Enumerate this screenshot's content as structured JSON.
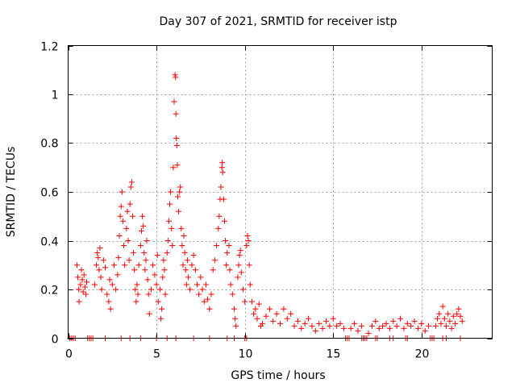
{
  "chart_data": {
    "type": "scatter",
    "title": "Day 307 of 2021, SRMTID for receiver istp",
    "xlabel": "GPS time / hours",
    "ylabel": "SRMTID / TECUs",
    "xlim": [
      0,
      24
    ],
    "ylim": [
      0,
      1.2
    ],
    "xticks": [
      0,
      5,
      10,
      15,
      20
    ],
    "xtick_labels": [
      "0",
      "5",
      "10",
      "15",
      "20"
    ],
    "yticks": [
      0,
      0.2,
      0.4,
      0.6,
      0.8,
      1.0,
      1.2
    ],
    "ytick_labels": [
      "0",
      "0.2",
      "0.4",
      "0.6",
      "0.8",
      "1",
      "1.2"
    ],
    "grid": true,
    "marker": "+",
    "color": "#ff0000",
    "series": [
      {
        "name": "SRMTID",
        "points": [
          [
            0.1,
            0.0
          ],
          [
            0.2,
            0.0
          ],
          [
            0.3,
            0.0
          ],
          [
            0.4,
            0.0
          ],
          [
            1.1,
            0.0
          ],
          [
            1.2,
            0.0
          ],
          [
            1.3,
            0.0
          ],
          [
            1.4,
            0.0
          ],
          [
            2.1,
            0.0
          ],
          [
            3.0,
            0.0
          ],
          [
            3.5,
            0.0
          ],
          [
            4.1,
            0.0
          ],
          [
            5.0,
            0.0
          ],
          [
            5.6,
            0.0
          ],
          [
            6.1,
            0.0
          ],
          [
            7.1,
            0.0
          ],
          [
            8.0,
            0.0
          ],
          [
            9.0,
            0.0
          ],
          [
            9.4,
            0.0
          ],
          [
            10.0,
            0.0
          ],
          [
            10.1,
            0.0
          ],
          [
            15.7,
            0.0
          ],
          [
            15.8,
            0.0
          ],
          [
            15.9,
            0.0
          ],
          [
            16.6,
            0.0
          ],
          [
            16.7,
            0.0
          ],
          [
            16.8,
            0.0
          ],
          [
            16.9,
            0.0
          ],
          [
            17.4,
            0.0
          ],
          [
            17.5,
            0.0
          ],
          [
            18.2,
            0.0
          ],
          [
            18.4,
            0.0
          ],
          [
            19.1,
            0.0
          ],
          [
            19.2,
            0.0
          ],
          [
            20.5,
            0.0
          ],
          [
            20.6,
            0.0
          ],
          [
            20.7,
            0.0
          ],
          [
            21.2,
            0.0
          ],
          [
            21.4,
            0.0
          ],
          [
            22.2,
            0.0
          ],
          [
            0.5,
            0.3
          ],
          [
            0.55,
            0.25
          ],
          [
            0.6,
            0.2
          ],
          [
            0.62,
            0.15
          ],
          [
            0.7,
            0.22
          ],
          [
            0.75,
            0.28
          ],
          [
            0.8,
            0.24
          ],
          [
            0.85,
            0.19
          ],
          [
            0.9,
            0.26
          ],
          [
            0.95,
            0.21
          ],
          [
            1.0,
            0.18
          ],
          [
            1.05,
            0.23
          ],
          [
            1.5,
            0.22
          ],
          [
            1.6,
            0.3
          ],
          [
            1.65,
            0.35
          ],
          [
            1.7,
            0.33
          ],
          [
            1.75,
            0.28
          ],
          [
            1.8,
            0.37
          ],
          [
            1.85,
            0.25
          ],
          [
            1.9,
            0.2
          ],
          [
            2.0,
            0.32
          ],
          [
            2.1,
            0.29
          ],
          [
            2.2,
            0.18
          ],
          [
            2.3,
            0.15
          ],
          [
            2.35,
            0.24
          ],
          [
            2.4,
            0.12
          ],
          [
            2.5,
            0.22
          ],
          [
            2.6,
            0.3
          ],
          [
            2.7,
            0.2
          ],
          [
            2.8,
            0.26
          ],
          [
            2.85,
            0.33
          ],
          [
            2.9,
            0.42
          ],
          [
            2.95,
            0.5
          ],
          [
            3.0,
            0.54
          ],
          [
            3.05,
            0.6
          ],
          [
            3.1,
            0.48
          ],
          [
            3.15,
            0.38
          ],
          [
            3.2,
            0.3
          ],
          [
            3.3,
            0.45
          ],
          [
            3.35,
            0.52
          ],
          [
            3.4,
            0.4
          ],
          [
            3.45,
            0.32
          ],
          [
            3.5,
            0.55
          ],
          [
            3.55,
            0.62
          ],
          [
            3.6,
            0.64
          ],
          [
            3.65,
            0.5
          ],
          [
            3.7,
            0.35
          ],
          [
            3.75,
            0.28
          ],
          [
            3.8,
            0.2
          ],
          [
            3.85,
            0.15
          ],
          [
            3.9,
            0.22
          ],
          [
            3.95,
            0.18
          ],
          [
            4.0,
            0.3
          ],
          [
            4.1,
            0.38
          ],
          [
            4.15,
            0.44
          ],
          [
            4.2,
            0.5
          ],
          [
            4.25,
            0.46
          ],
          [
            4.3,
            0.35
          ],
          [
            4.35,
            0.28
          ],
          [
            4.4,
            0.32
          ],
          [
            4.45,
            0.4
          ],
          [
            4.5,
            0.24
          ],
          [
            4.55,
            0.18
          ],
          [
            4.6,
            0.1
          ],
          [
            4.7,
            0.2
          ],
          [
            4.8,
            0.3
          ],
          [
            4.9,
            0.26
          ],
          [
            5.0,
            0.22
          ],
          [
            5.05,
            0.34
          ],
          [
            5.1,
            0.15
          ],
          [
            5.2,
            0.2
          ],
          [
            5.25,
            0.08
          ],
          [
            5.3,
            0.12
          ],
          [
            5.35,
            0.25
          ],
          [
            5.4,
            0.32
          ],
          [
            5.45,
            0.28
          ],
          [
            5.5,
            0.18
          ],
          [
            5.6,
            0.35
          ],
          [
            5.65,
            0.4
          ],
          [
            5.7,
            0.48
          ],
          [
            5.75,
            0.55
          ],
          [
            5.8,
            0.6
          ],
          [
            5.85,
            0.45
          ],
          [
            5.9,
            0.38
          ],
          [
            5.95,
            0.7
          ],
          [
            6.0,
            0.97
          ],
          [
            6.05,
            1.08
          ],
          [
            6.08,
            1.07
          ],
          [
            6.1,
            0.92
          ],
          [
            6.12,
            0.82
          ],
          [
            6.15,
            0.79
          ],
          [
            6.18,
            0.71
          ],
          [
            6.2,
            0.58
          ],
          [
            6.25,
            0.52
          ],
          [
            6.3,
            0.6
          ],
          [
            6.35,
            0.62
          ],
          [
            6.4,
            0.45
          ],
          [
            6.45,
            0.38
          ],
          [
            6.5,
            0.3
          ],
          [
            6.55,
            0.42
          ],
          [
            6.6,
            0.35
          ],
          [
            6.65,
            0.28
          ],
          [
            6.7,
            0.22
          ],
          [
            6.75,
            0.32
          ],
          [
            6.8,
            0.25
          ],
          [
            6.9,
            0.2
          ],
          [
            7.0,
            0.3
          ],
          [
            7.1,
            0.34
          ],
          [
            7.2,
            0.28
          ],
          [
            7.3,
            0.22
          ],
          [
            7.4,
            0.18
          ],
          [
            7.5,
            0.25
          ],
          [
            7.6,
            0.2
          ],
          [
            7.7,
            0.15
          ],
          [
            7.8,
            0.22
          ],
          [
            7.9,
            0.16
          ],
          [
            8.0,
            0.12
          ],
          [
            8.1,
            0.18
          ],
          [
            8.2,
            0.28
          ],
          [
            8.3,
            0.32
          ],
          [
            8.4,
            0.38
          ],
          [
            8.5,
            0.45
          ],
          [
            8.55,
            0.5
          ],
          [
            8.6,
            0.57
          ],
          [
            8.65,
            0.62
          ],
          [
            8.7,
            0.7
          ],
          [
            8.72,
            0.72
          ],
          [
            8.75,
            0.68
          ],
          [
            8.8,
            0.57
          ],
          [
            8.85,
            0.48
          ],
          [
            8.9,
            0.4
          ],
          [
            8.95,
            0.3
          ],
          [
            9.0,
            0.35
          ],
          [
            9.1,
            0.38
          ],
          [
            9.15,
            0.28
          ],
          [
            9.2,
            0.22
          ],
          [
            9.3,
            0.18
          ],
          [
            9.4,
            0.12
          ],
          [
            9.45,
            0.08
          ],
          [
            9.5,
            0.05
          ],
          [
            9.6,
            0.25
          ],
          [
            9.65,
            0.3
          ],
          [
            9.7,
            0.34
          ],
          [
            9.75,
            0.36
          ],
          [
            9.8,
            0.27
          ],
          [
            9.9,
            0.2
          ],
          [
            10.0,
            0.15
          ],
          [
            10.1,
            0.38
          ],
          [
            10.15,
            0.42
          ],
          [
            10.2,
            0.4
          ],
          [
            10.25,
            0.3
          ],
          [
            10.3,
            0.22
          ],
          [
            10.4,
            0.15
          ],
          [
            10.5,
            0.1
          ],
          [
            10.6,
            0.12
          ],
          [
            10.7,
            0.08
          ],
          [
            10.8,
            0.14
          ],
          [
            10.9,
            0.05
          ],
          [
            11.0,
            0.06
          ],
          [
            11.2,
            0.09
          ],
          [
            11.4,
            0.12
          ],
          [
            11.6,
            0.07
          ],
          [
            11.8,
            0.1
          ],
          [
            12.0,
            0.06
          ],
          [
            12.2,
            0.12
          ],
          [
            12.4,
            0.08
          ],
          [
            12.6,
            0.1
          ],
          [
            12.8,
            0.05
          ],
          [
            13.0,
            0.07
          ],
          [
            13.2,
            0.04
          ],
          [
            13.4,
            0.06
          ],
          [
            13.6,
            0.08
          ],
          [
            13.8,
            0.05
          ],
          [
            14.0,
            0.03
          ],
          [
            14.2,
            0.06
          ],
          [
            14.4,
            0.04
          ],
          [
            14.6,
            0.07
          ],
          [
            14.8,
            0.05
          ],
          [
            15.0,
            0.08
          ],
          [
            15.2,
            0.05
          ],
          [
            15.4,
            0.06
          ],
          [
            15.6,
            0.04
          ],
          [
            16.0,
            0.04
          ],
          [
            16.2,
            0.06
          ],
          [
            16.4,
            0.03
          ],
          [
            16.6,
            0.05
          ],
          [
            17.0,
            0.02
          ],
          [
            17.2,
            0.05
          ],
          [
            17.4,
            0.07
          ],
          [
            17.6,
            0.04
          ],
          [
            17.8,
            0.05
          ],
          [
            18.0,
            0.06
          ],
          [
            18.2,
            0.04
          ],
          [
            18.4,
            0.07
          ],
          [
            18.6,
            0.05
          ],
          [
            18.8,
            0.08
          ],
          [
            19.0,
            0.04
          ],
          [
            19.2,
            0.06
          ],
          [
            19.4,
            0.05
          ],
          [
            19.6,
            0.07
          ],
          [
            19.8,
            0.04
          ],
          [
            20.0,
            0.06
          ],
          [
            20.2,
            0.03
          ],
          [
            20.4,
            0.05
          ],
          [
            20.8,
            0.05
          ],
          [
            20.9,
            0.08
          ],
          [
            21.0,
            0.1
          ],
          [
            21.1,
            0.06
          ],
          [
            21.2,
            0.13
          ],
          [
            21.3,
            0.08
          ],
          [
            21.4,
            0.05
          ],
          [
            21.5,
            0.1
          ],
          [
            21.6,
            0.07
          ],
          [
            21.7,
            0.04
          ],
          [
            21.8,
            0.09
          ],
          [
            21.9,
            0.06
          ],
          [
            22.0,
            0.1
          ],
          [
            22.1,
            0.12
          ],
          [
            22.2,
            0.09
          ],
          [
            22.3,
            0.07
          ]
        ]
      }
    ]
  }
}
